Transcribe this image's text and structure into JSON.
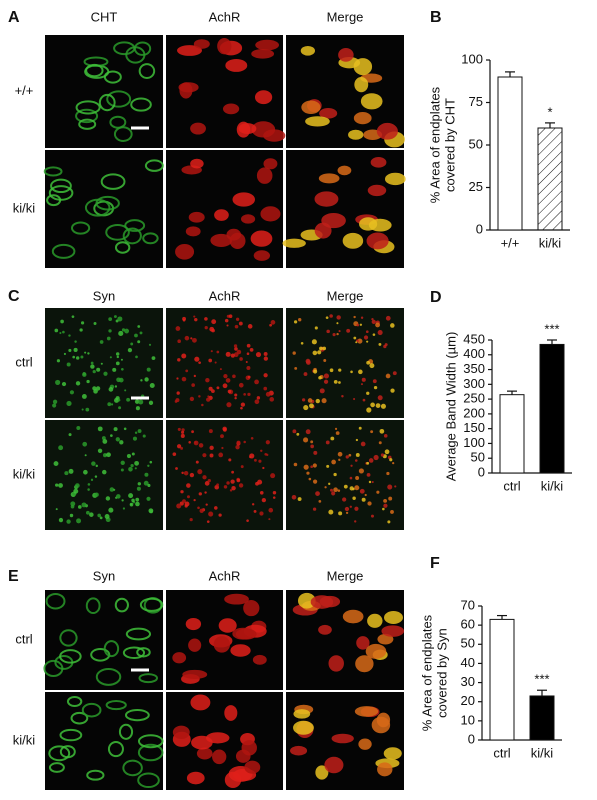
{
  "figure": {
    "panels": [
      {
        "letter": "A",
        "columns": [
          "CHT",
          "AchR",
          "Merge"
        ],
        "rows": [
          "+/+",
          "ki/ki"
        ]
      },
      {
        "letter": "C",
        "columns": [
          "Syn",
          "AchR",
          "Merge"
        ],
        "rows": [
          "ctrl",
          "ki/ki"
        ]
      },
      {
        "letter": "E",
        "columns": [
          "Syn",
          "AchR",
          "Merge"
        ],
        "rows": [
          "ctrl",
          "ki/ki"
        ]
      }
    ]
  },
  "chart_data": [
    {
      "type": "bar",
      "letter": "B",
      "ylabel": [
        "% Area of endplates",
        "covered by CHT"
      ],
      "categories": [
        "+/+",
        "ki/ki"
      ],
      "values": [
        90,
        60
      ],
      "errors": [
        3,
        3
      ],
      "colors": [
        "#ffffff",
        "#ffffff"
      ],
      "hatch": [
        false,
        true
      ],
      "significance": "*",
      "ylim": [
        0,
        100
      ],
      "yticks": [
        0,
        25,
        50,
        75,
        100
      ]
    },
    {
      "type": "bar",
      "letter": "D",
      "ylabel": [
        "Average Band Width (µm)"
      ],
      "categories": [
        "ctrl",
        "ki/ki"
      ],
      "values": [
        265,
        435
      ],
      "errors": [
        12,
        15
      ],
      "colors": [
        "#ffffff",
        "#000000"
      ],
      "hatch": [
        false,
        false
      ],
      "significance": "***",
      "ylim": [
        0,
        450
      ],
      "yticks": [
        0,
        50,
        100,
        150,
        200,
        250,
        300,
        350,
        400,
        450
      ]
    },
    {
      "type": "bar",
      "letter": "F",
      "ylabel": [
        "% Area of endplates",
        "covered by Syn"
      ],
      "categories": [
        "ctrl",
        "ki/ki"
      ],
      "values": [
        63,
        23
      ],
      "errors": [
        2,
        3
      ],
      "colors": [
        "#ffffff",
        "#000000"
      ],
      "hatch": [
        false,
        false
      ],
      "significance": "***",
      "ylim": [
        0,
        70
      ],
      "yticks": [
        0,
        10,
        20,
        30,
        40,
        50,
        60,
        70
      ]
    }
  ]
}
